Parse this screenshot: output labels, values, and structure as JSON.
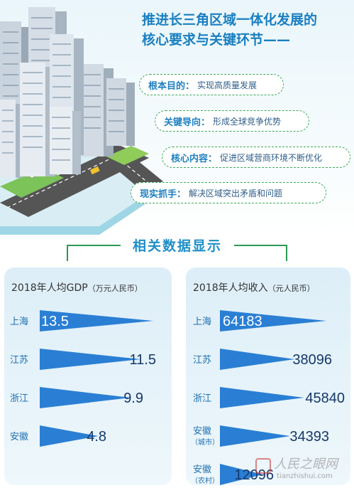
{
  "title": {
    "line1": "推进长三角区域一体化发展的",
    "line2": "核心要求与关键环节——"
  },
  "points": [
    {
      "key": "根本目的：",
      "value": "实现高质量发展"
    },
    {
      "key": "关键导向：",
      "value": "形成全球竞争优势"
    },
    {
      "key": "核心内容：",
      "value": "促进区域营商环境不断优化"
    },
    {
      "key": "现实抓手：",
      "value": "解决区域突出矛盾和问题"
    }
  ],
  "section_title": "相关数据显示",
  "colors": {
    "title_blue": "#1a7fc0",
    "bar_blue": "#2a7fd4",
    "green": "#3caa5a"
  },
  "chart_data": [
    {
      "type": "bar",
      "title": "2018年人均GDP",
      "unit": "（万元人民币）",
      "categories": [
        "上海",
        "江苏",
        "浙江",
        "安徽"
      ],
      "values": [
        13.5,
        11.5,
        9.9,
        4.8
      ],
      "value_labels": [
        "13.5",
        "11.5",
        "9.9",
        "4.8"
      ]
    },
    {
      "type": "bar",
      "title": "2018年人均收入",
      "unit": "（元人民币）",
      "categories": [
        "上海",
        "江苏",
        "浙江",
        "安徽",
        "安徽"
      ],
      "category_notes": [
        "",
        "",
        "",
        "（城市）",
        "（农村）"
      ],
      "values": [
        64183,
        38096,
        45840,
        34393,
        12096
      ],
      "value_labels": [
        "64183",
        "38096",
        "45840",
        "34393",
        "12096"
      ]
    }
  ],
  "watermark": {
    "text": "人民之眼网",
    "url": "tianzhishui.com"
  }
}
